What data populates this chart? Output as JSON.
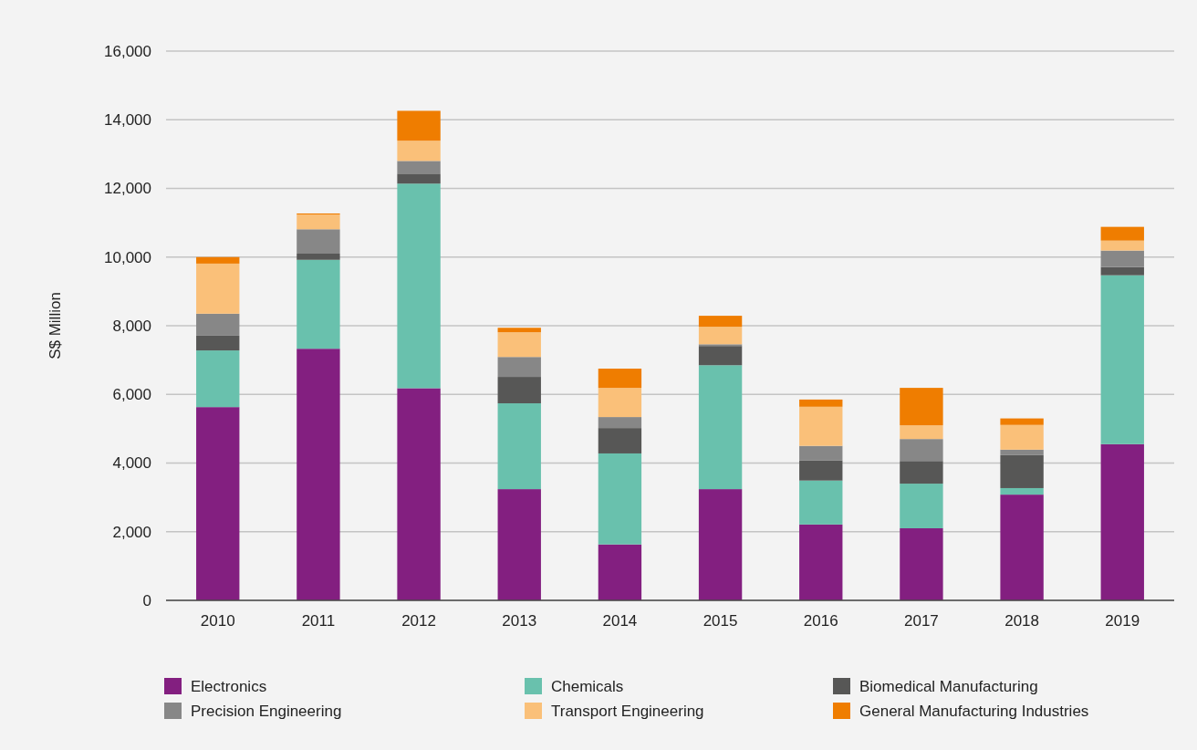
{
  "chart_data": {
    "type": "bar",
    "stacked": true,
    "ylabel": "S$ Million",
    "categories": [
      "2010",
      "2011",
      "2012",
      "2013",
      "2014",
      "2015",
      "2016",
      "2017",
      "2018",
      "2019"
    ],
    "series": [
      {
        "name": "Electronics",
        "color": "#831f80",
        "values": [
          5630,
          7330,
          6180,
          3240,
          1630,
          3240,
          2210,
          2100,
          3080,
          4550
        ]
      },
      {
        "name": "Chemicals",
        "color": "#69c1ad",
        "values": [
          1650,
          2590,
          5960,
          2500,
          2650,
          3610,
          1280,
          1300,
          190,
          4920
        ]
      },
      {
        "name": "Biomedical Manufacturing",
        "color": "#575756",
        "values": [
          430,
          180,
          290,
          770,
          740,
          560,
          580,
          660,
          960,
          240
        ]
      },
      {
        "name": "Precision Engineering",
        "color": "#878787",
        "values": [
          640,
          710,
          370,
          580,
          320,
          50,
          430,
          640,
          160,
          480
        ]
      },
      {
        "name": "Transport Engineering",
        "color": "#fac079",
        "values": [
          1460,
          430,
          590,
          720,
          850,
          510,
          1140,
          400,
          720,
          290
        ]
      },
      {
        "name": "General Manufacturing Industries",
        "color": "#ef7d00",
        "values": [
          190,
          30,
          870,
          130,
          560,
          320,
          210,
          1090,
          190,
          400
        ]
      }
    ],
    "ylim": [
      0,
      16000
    ],
    "yticks": [
      {
        "value": 0,
        "label": "0"
      },
      {
        "value": 2000,
        "label": "2,000"
      },
      {
        "value": 4000,
        "label": "4,000"
      },
      {
        "value": 6000,
        "label": "6,000"
      },
      {
        "value": 8000,
        "label": "8,000"
      },
      {
        "value": 10000,
        "label": "10,000"
      },
      {
        "value": 12000,
        "label": "12,000"
      },
      {
        "value": 14000,
        "label": "14,000"
      },
      {
        "value": 16000,
        "label": "16,000"
      }
    ],
    "grid": "y",
    "legend": "bottom"
  }
}
